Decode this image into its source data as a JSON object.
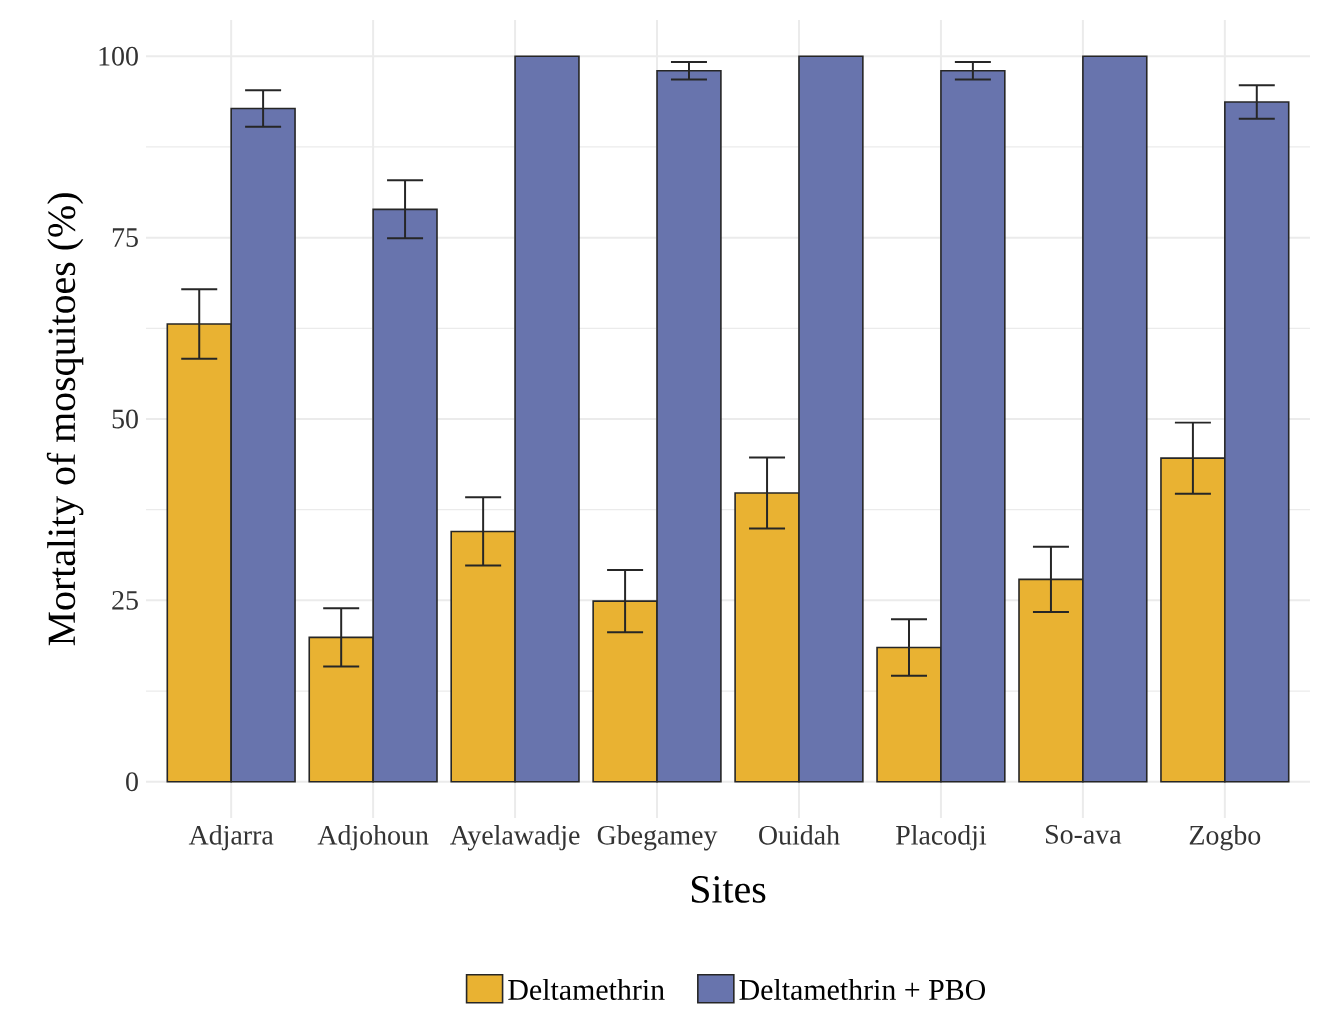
{
  "chart_data": {
    "type": "bar",
    "xlabel": "Sites",
    "ylabel": "Mortality of mosquitoes (%)",
    "categories": [
      "Adjarra",
      "Adjohoun",
      "Ayelawadje",
      "Gbegamey",
      "Ouidah",
      "Placodji",
      "So-ava",
      "Zogbo"
    ],
    "series": [
      {
        "name": "Deltamethrin",
        "color": "#e9b232",
        "values": [
          63.1,
          19.9,
          34.5,
          24.9,
          39.8,
          18.5,
          27.9,
          44.6
        ],
        "errors": [
          4.8,
          4.0,
          4.7,
          4.3,
          4.9,
          3.9,
          4.5,
          4.9
        ]
      },
      {
        "name": "Deltamethrin + PBO",
        "color": "#6874ad",
        "values": [
          92.8,
          78.9,
          100,
          98,
          100,
          98,
          100,
          93.7
        ],
        "errors": [
          2.5,
          4.0,
          null,
          1.2,
          null,
          1.2,
          null,
          2.3
        ]
      }
    ],
    "ylim": [
      -5,
      105
    ],
    "yticks": [
      0,
      25,
      50,
      75,
      100
    ],
    "grid": true,
    "legend": "bottom"
  }
}
